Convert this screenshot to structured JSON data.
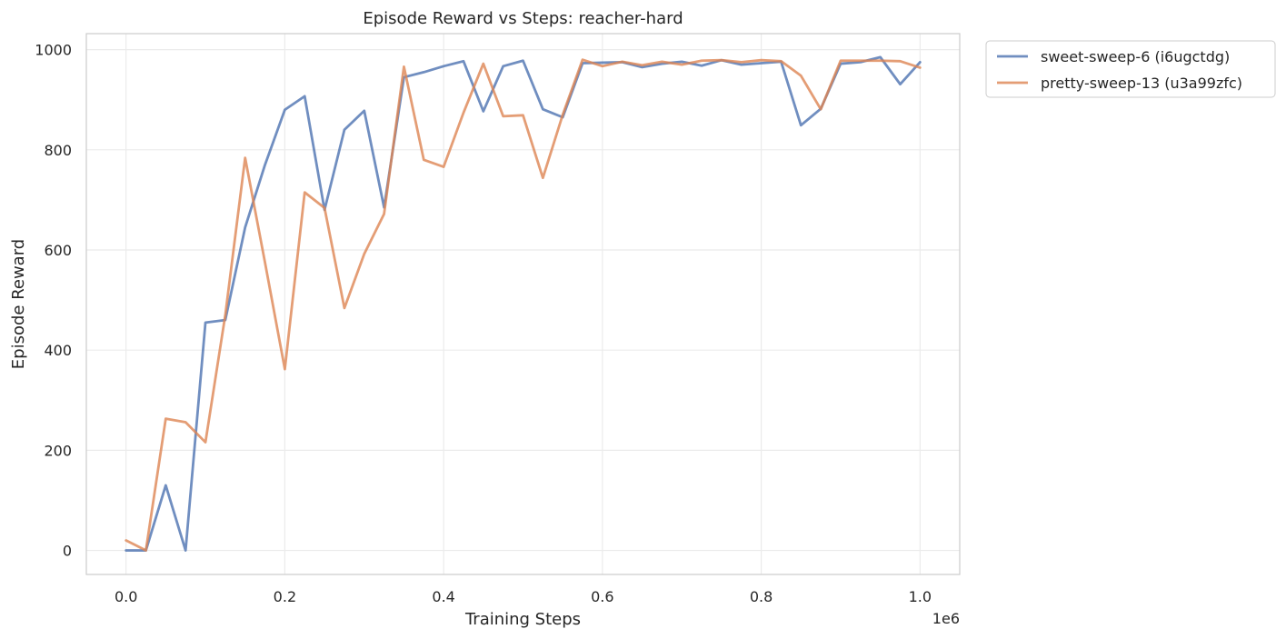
{
  "chart_data": {
    "type": "line",
    "title": "Episode Reward vs Steps: reacher-hard",
    "xlabel": "Training Steps",
    "ylabel": "Episode Reward",
    "x_offset_label": "1e6",
    "xlim": [
      -0.05,
      1.05
    ],
    "ylim": [
      -48,
      1032
    ],
    "x_ticks": [
      0.0,
      0.2,
      0.4,
      0.6,
      0.8,
      1.0
    ],
    "x_tick_labels": [
      "0.0",
      "0.2",
      "0.4",
      "0.6",
      "0.8",
      "1.0"
    ],
    "y_ticks": [
      0,
      200,
      400,
      600,
      800,
      1000
    ],
    "y_tick_labels": [
      "0",
      "200",
      "400",
      "600",
      "800",
      "1000"
    ],
    "grid": true,
    "legend_position": "outside-top-right",
    "x": [
      0.0,
      0.025,
      0.05,
      0.075,
      0.1,
      0.125,
      0.15,
      0.175,
      0.2,
      0.225,
      0.25,
      0.275,
      0.3,
      0.325,
      0.35,
      0.375,
      0.4,
      0.425,
      0.45,
      0.475,
      0.5,
      0.525,
      0.55,
      0.575,
      0.6,
      0.625,
      0.65,
      0.675,
      0.7,
      0.725,
      0.75,
      0.775,
      0.8,
      0.825,
      0.85,
      0.875,
      0.9,
      0.925,
      0.95,
      0.975,
      1.0
    ],
    "series": [
      {
        "name": "sweet-sweep-6 (i6ugctdg)",
        "color": "#4c72b0",
        "values": [
          0,
          0,
          130,
          0,
          455,
          460,
          645,
          770,
          880,
          907,
          680,
          840,
          878,
          685,
          945,
          955,
          967,
          977,
          877,
          967,
          978,
          881,
          865,
          973,
          974,
          975,
          965,
          972,
          976,
          968,
          979,
          970,
          973,
          976,
          849,
          882,
          972,
          975,
          985,
          931,
          975
        ]
      },
      {
        "name": "pretty-sweep-13 (u3a99zfc)",
        "color": "#dd8452",
        "values": [
          20,
          0,
          263,
          256,
          216,
          470,
          784,
          575,
          362,
          715,
          684,
          484,
          592,
          672,
          966,
          780,
          766,
          874,
          972,
          867,
          869,
          744,
          870,
          980,
          967,
          976,
          969,
          976,
          970,
          978,
          979,
          975,
          979,
          977,
          948,
          881,
          978,
          978,
          978,
          977,
          964
        ]
      }
    ]
  }
}
